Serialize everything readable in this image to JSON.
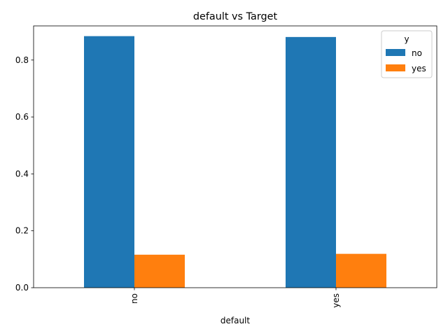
{
  "chart_data": {
    "type": "bar",
    "title": "default vs Target",
    "xlabel": "default",
    "ylabel": "",
    "categories": [
      "no",
      "yes"
    ],
    "ylim": [
      0,
      0.92
    ],
    "yticks": [
      0.0,
      0.2,
      0.4,
      0.6,
      0.8
    ],
    "ytick_labels": [
      "0.0",
      "0.2",
      "0.4",
      "0.6",
      "0.8"
    ],
    "legend": {
      "title": "y",
      "position": "top-right"
    },
    "series": [
      {
        "name": "no",
        "values": [
          0.884,
          0.881
        ],
        "color": "#1f77b4"
      },
      {
        "name": "yes",
        "values": [
          0.116,
          0.119
        ],
        "color": "#ff7f0e"
      }
    ],
    "grid": false
  }
}
